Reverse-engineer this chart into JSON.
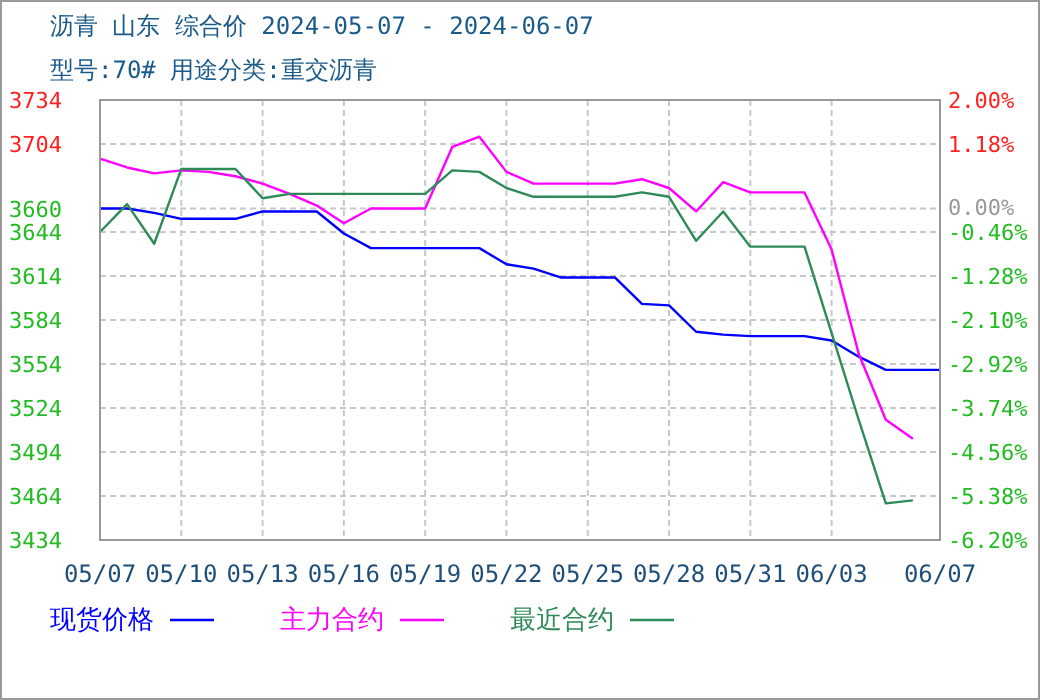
{
  "chart_data": {
    "type": "line",
    "title": "沥青  山东  综合价  2024-05-07 - 2024-06-07",
    "subtitle": "型号:70#  用途分类:重交沥青",
    "x": [
      "2024-05-07",
      "2024-05-08",
      "2024-05-09",
      "2024-05-10",
      "2024-05-11",
      "2024-05-12",
      "2024-05-13",
      "2024-05-14",
      "2024-05-15",
      "2024-05-16",
      "2024-05-17",
      "2024-05-18",
      "2024-05-19",
      "2024-05-20",
      "2024-05-21",
      "2024-05-22",
      "2024-05-23",
      "2024-05-24",
      "2024-05-25",
      "2024-05-26",
      "2024-05-27",
      "2024-05-28",
      "2024-05-29",
      "2024-05-30",
      "2024-05-31",
      "2024-06-01",
      "2024-06-02",
      "2024-06-03",
      "2024-06-04",
      "2024-06-05",
      "2024-06-06",
      "2024-06-07"
    ],
    "series": [
      {
        "name": "现货价格",
        "color": "#0000ff",
        "values": [
          3660,
          3660,
          3657,
          3653,
          3653,
          3653,
          3658,
          3658,
          3658,
          3643,
          3633,
          3633,
          3633,
          3633,
          3633,
          3622,
          3619,
          3613,
          3613,
          3613,
          3595,
          3594,
          3576,
          3574,
          3573,
          3573,
          3573,
          3570,
          3559,
          3550,
          3550,
          3550
        ]
      },
      {
        "name": "主力合约",
        "color": "#ff00ff",
        "values": [
          3694,
          3688,
          3684,
          3686,
          3685,
          3682,
          3677,
          3670,
          3662,
          3650,
          3660,
          3660,
          3660,
          3702,
          3709,
          3685,
          3677,
          3677,
          3677,
          3677,
          3680,
          3674,
          3658,
          3678,
          3671,
          3671,
          3671,
          3632,
          3561,
          3516,
          3503,
          null
        ]
      },
      {
        "name": "最近合约",
        "color": "#2e8b57",
        "values": [
          3644,
          3663,
          3636,
          3687,
          3687,
          3687,
          3667,
          3670,
          3670,
          3670,
          3670,
          3670,
          3670,
          3686,
          3685,
          3674,
          3668,
          3668,
          3668,
          3668,
          3671,
          3668,
          3638,
          3658,
          3634,
          3634,
          3634,
          3575,
          3516,
          3459,
          3461,
          null
        ]
      }
    ],
    "xlim": [
      "2024-05-07",
      "2024-06-07"
    ],
    "xticks": [
      {
        "value": "2024-05-07",
        "label": "05/07"
      },
      {
        "value": "2024-05-10",
        "label": "05/10"
      },
      {
        "value": "2024-05-13",
        "label": "05/13"
      },
      {
        "value": "2024-05-16",
        "label": "05/16"
      },
      {
        "value": "2024-05-19",
        "label": "05/19"
      },
      {
        "value": "2024-05-22",
        "label": "05/22"
      },
      {
        "value": "2024-05-25",
        "label": "05/25"
      },
      {
        "value": "2024-05-28",
        "label": "05/28"
      },
      {
        "value": "2024-05-31",
        "label": "05/31"
      },
      {
        "value": "2024-06-03",
        "label": "06/03"
      },
      {
        "value": "2024-06-07",
        "label": "06/07"
      }
    ],
    "ylim": [
      3434,
      3734
    ],
    "yticks": [
      3734,
      3704,
      3660,
      3644,
      3614,
      3584,
      3554,
      3524,
      3494,
      3464,
      3434
    ],
    "y2lim": [
      -6.2,
      2.0
    ],
    "y2ticks": [
      {
        "value": 2.0,
        "label": "2.00%"
      },
      {
        "value": 1.18,
        "label": "1.18%"
      },
      {
        "value": 0,
        "label": "0.00%"
      },
      {
        "value": -0.46,
        "label": "-0.46%"
      },
      {
        "value": -1.28,
        "label": "-1.28%"
      },
      {
        "value": -2.1,
        "label": "-2.10%"
      },
      {
        "value": -2.92,
        "label": "-2.92%"
      },
      {
        "value": -3.74,
        "label": "-3.74%"
      },
      {
        "value": -4.56,
        "label": "-4.56%"
      },
      {
        "value": -5.38,
        "label": "-5.38%"
      },
      {
        "value": -6.2,
        "label": "-6.20%"
      }
    ],
    "grid": true,
    "legend": "bottom"
  }
}
